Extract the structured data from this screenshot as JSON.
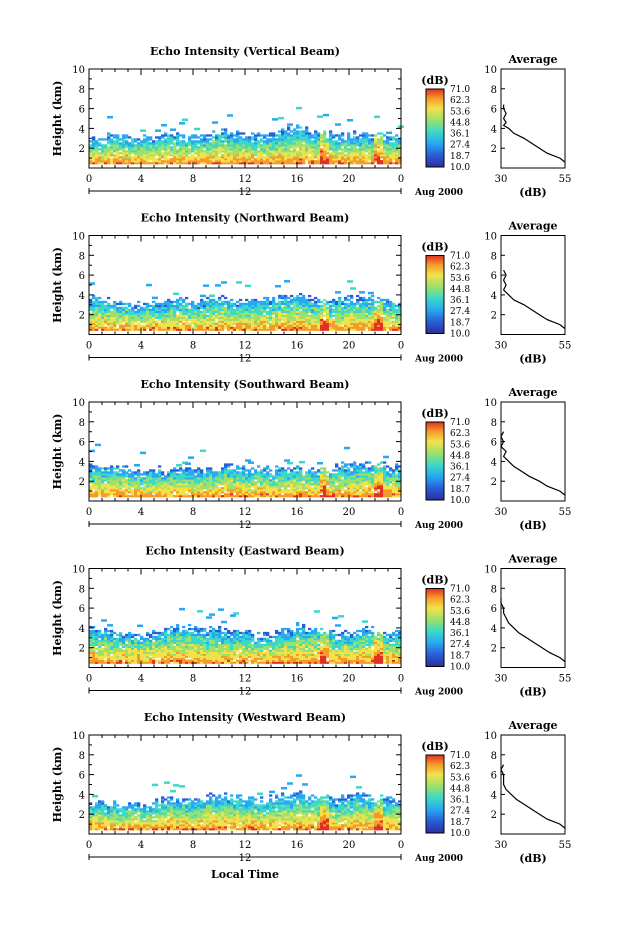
{
  "figure": {
    "bottom_xlabel": "Local Time"
  },
  "chart_data": [
    {
      "type": "heatmap",
      "title": "Echo Intensity (Vertical Beam)",
      "ylabel": "Height (km)",
      "xlim": [
        0,
        24
      ],
      "ylim": [
        0,
        10
      ],
      "x_ticks": [
        "0",
        "4",
        "8",
        "12",
        "16",
        "20",
        "0"
      ],
      "y_ticks": [
        "2",
        "4",
        "6",
        "8",
        "10"
      ],
      "date_marker": "12",
      "date_label": "Aug 2000",
      "colorbar": {
        "label": "(dB)",
        "ticks": [
          "71.0",
          "62.3",
          "53.6",
          "44.8",
          "36.1",
          "27.4",
          "18.7",
          "10.0"
        ]
      },
      "echo_top_km": [
        3.0,
        3.2,
        3.4,
        3.1,
        3.0,
        3.2,
        3.5,
        3.3,
        3.1,
        3.4,
        3.8,
        3.6,
        3.3,
        3.5,
        3.4,
        3.9,
        4.2,
        3.7,
        3.5,
        3.3,
        3.4,
        3.6,
        3.4,
        3.2,
        3.1
      ],
      "profile": {
        "title": "Average",
        "xlabel": "(dB)",
        "xlim": [
          30,
          55
        ],
        "x_ticks": [
          "30",
          "55"
        ],
        "y_ticks": [
          "2",
          "4",
          "6",
          "8",
          "10"
        ],
        "height_km": [
          0.6,
          1,
          1.5,
          2,
          2.5,
          3,
          3.5,
          4,
          4.3,
          4.6,
          5,
          5.5,
          6,
          6.4
        ],
        "db": [
          55,
          53,
          48,
          45,
          42,
          39,
          35,
          33,
          31,
          32,
          31,
          32,
          31,
          31
        ]
      }
    },
    {
      "type": "heatmap",
      "title": "Echo Intensity (Northward Beam)",
      "ylabel": "Height (km)",
      "xlim": [
        0,
        24
      ],
      "ylim": [
        0,
        10
      ],
      "x_ticks": [
        "0",
        "4",
        "8",
        "12",
        "16",
        "20",
        "0"
      ],
      "y_ticks": [
        "2",
        "4",
        "6",
        "8",
        "10"
      ],
      "date_marker": "12",
      "date_label": "Aug 2000",
      "colorbar": {
        "label": "(dB)",
        "ticks": [
          "71.0",
          "62.3",
          "53.6",
          "44.8",
          "36.1",
          "27.4",
          "18.7",
          "10.0"
        ]
      },
      "echo_top_km": [
        3.8,
        3.6,
        3.4,
        3.2,
        3.0,
        3.1,
        3.3,
        3.6,
        3.2,
        3.5,
        3.9,
        3.4,
        3.3,
        3.7,
        3.5,
        4.0,
        4.2,
        3.6,
        3.4,
        3.5,
        3.7,
        3.9,
        3.6,
        3.4,
        3.3
      ],
      "profile": {
        "title": "Average",
        "xlabel": "(dB)",
        "xlim": [
          30,
          55
        ],
        "x_ticks": [
          "30",
          "55"
        ],
        "y_ticks": [
          "2",
          "4",
          "6",
          "8",
          "10"
        ],
        "height_km": [
          0.6,
          1,
          1.5,
          2,
          2.5,
          3,
          3.5,
          4,
          4.5,
          5,
          5.5,
          6,
          6.5
        ],
        "db": [
          55,
          53,
          48,
          45,
          42,
          39,
          35,
          33,
          31,
          32,
          31,
          32,
          31
        ]
      }
    },
    {
      "type": "heatmap",
      "title": "Echo Intensity (Southward Beam)",
      "ylabel": "Height (km)",
      "xlim": [
        0,
        24
      ],
      "ylim": [
        0,
        10
      ],
      "x_ticks": [
        "0",
        "4",
        "8",
        "12",
        "16",
        "20",
        "0"
      ],
      "y_ticks": [
        "2",
        "4",
        "6",
        "8",
        "10"
      ],
      "date_marker": "12",
      "date_label": "Aug 2000",
      "colorbar": {
        "label": "(dB)",
        "ticks": [
          "71.0",
          "62.3",
          "53.6",
          "44.8",
          "36.1",
          "27.4",
          "18.7",
          "10.0"
        ]
      },
      "echo_top_km": [
        3.8,
        3.7,
        3.4,
        3.2,
        3.0,
        3.1,
        3.3,
        3.4,
        3.2,
        3.3,
        3.5,
        3.4,
        3.2,
        3.3,
        3.2,
        3.4,
        3.5,
        3.3,
        3.2,
        3.6,
        3.9,
        3.8,
        3.7,
        3.6,
        3.5
      ],
      "profile": {
        "title": "Average",
        "xlabel": "(dB)",
        "xlim": [
          30,
          55
        ],
        "x_ticks": [
          "30",
          "55"
        ],
        "y_ticks": [
          "2",
          "4",
          "6",
          "8",
          "10"
        ],
        "height_km": [
          0.6,
          1,
          1.5,
          2,
          2.5,
          3,
          3.5,
          4,
          4.5,
          5,
          5.5,
          6,
          6.5,
          7
        ],
        "db": [
          55,
          53,
          48,
          45,
          41,
          38,
          35,
          33,
          31,
          32,
          30,
          31,
          30,
          31
        ]
      }
    },
    {
      "type": "heatmap",
      "title": "Echo Intensity (Eastward Beam)",
      "ylabel": "Height (km)",
      "xlim": [
        0,
        24
      ],
      "ylim": [
        0,
        10
      ],
      "x_ticks": [
        "0",
        "4",
        "8",
        "12",
        "16",
        "20",
        "0"
      ],
      "y_ticks": [
        "2",
        "4",
        "6",
        "8",
        "10"
      ],
      "date_marker": "12",
      "date_label": "Aug 2000",
      "colorbar": {
        "label": "(dB)",
        "ticks": [
          "71.0",
          "62.3",
          "53.6",
          "44.8",
          "36.1",
          "27.4",
          "18.7",
          "10.0"
        ]
      },
      "echo_top_km": [
        4.0,
        3.8,
        3.6,
        3.4,
        3.3,
        3.5,
        3.9,
        4.3,
        4.0,
        3.8,
        4.0,
        3.7,
        3.5,
        3.4,
        3.3,
        3.8,
        4.3,
        3.9,
        3.6,
        3.5,
        3.6,
        4.0,
        3.8,
        3.6,
        3.5
      ],
      "profile": {
        "title": "Average",
        "xlabel": "(dB)",
        "xlim": [
          30,
          55
        ],
        "x_ticks": [
          "30",
          "55"
        ],
        "y_ticks": [
          "2",
          "4",
          "6",
          "8",
          "10"
        ],
        "height_km": [
          0.6,
          1,
          1.5,
          2,
          2.5,
          3,
          3.5,
          4,
          4.5,
          5,
          5.5,
          6,
          6.5,
          7
        ],
        "db": [
          55,
          53,
          49,
          46,
          43,
          40,
          37,
          35,
          33,
          32,
          31,
          31,
          30,
          30
        ]
      }
    },
    {
      "type": "heatmap",
      "title": "Echo Intensity (Westward Beam)",
      "ylabel": "Height (km)",
      "xlim": [
        0,
        24
      ],
      "ylim": [
        0,
        10
      ],
      "x_ticks": [
        "0",
        "4",
        "8",
        "12",
        "16",
        "20",
        "0"
      ],
      "y_ticks": [
        "2",
        "4",
        "6",
        "8",
        "10"
      ],
      "date_marker": "12",
      "date_label": "Aug 2000",
      "colorbar": {
        "label": "(dB)",
        "ticks": [
          "71.0",
          "62.3",
          "53.6",
          "44.8",
          "36.1",
          "27.4",
          "18.7",
          "10.0"
        ]
      },
      "echo_top_km": [
        3.4,
        3.3,
        3.2,
        3.0,
        3.1,
        3.3,
        3.5,
        3.7,
        3.4,
        3.8,
        4.0,
        3.8,
        3.6,
        3.5,
        3.7,
        4.0,
        4.2,
        3.9,
        3.7,
        3.6,
        3.9,
        4.0,
        3.7,
        3.6,
        3.5
      ],
      "profile": {
        "title": "Average",
        "xlabel": "(dB)",
        "xlim": [
          30,
          55
        ],
        "x_ticks": [
          "30",
          "55"
        ],
        "y_ticks": [
          "2",
          "4",
          "6",
          "8",
          "10"
        ],
        "height_km": [
          0.6,
          1,
          1.5,
          2,
          2.5,
          3,
          3.5,
          4,
          4.5,
          5,
          5.5,
          6,
          6.5,
          7
        ],
        "db": [
          55,
          53,
          48,
          45,
          42,
          39,
          36,
          34,
          32,
          31,
          31,
          31,
          30,
          31
        ]
      }
    }
  ]
}
